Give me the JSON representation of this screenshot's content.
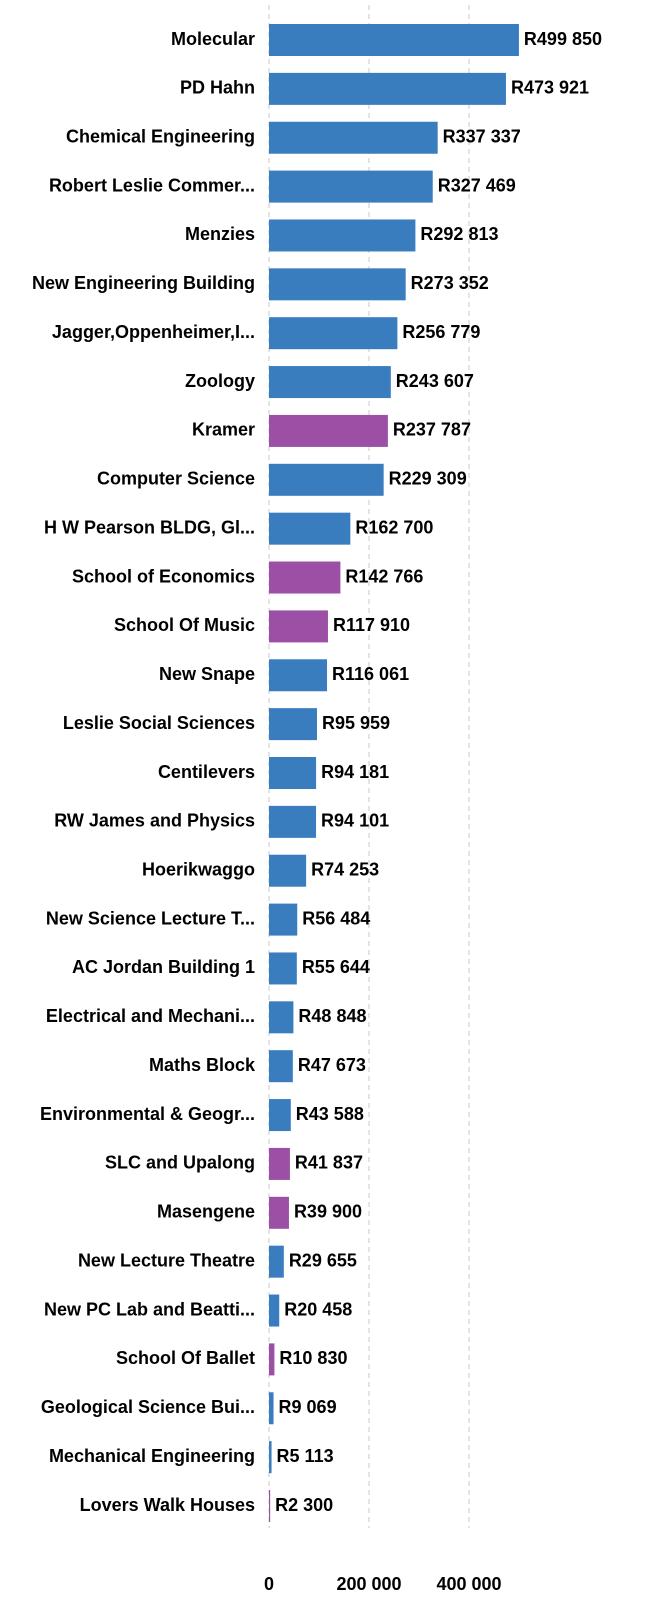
{
  "chart_data": {
    "type": "barh",
    "categories": [
      "Molecular",
      "PD Hahn",
      "Chemical Engineering",
      "Robert Leslie Commer...",
      "Menzies",
      "New Engineering Building",
      "Jagger,Oppenheimer,I...",
      "Zoology",
      "Kramer",
      "Computer Science",
      "H W Pearson BLDG, Gl...",
      "School of Economics",
      "School Of Music",
      "New Snape",
      "Leslie Social Sciences",
      "Centilevers",
      "RW James and Physics",
      "Hoerikwaggo",
      "New Science Lecture T...",
      "AC Jordan Building 1",
      "Electrical and Mechani...",
      "Maths Block",
      "Environmental & Geogr...",
      "SLC and Upalong",
      "Masengene",
      "New Lecture Theatre",
      "New PC Lab and Beatti...",
      "School Of Ballet",
      "Geological Science Bui...",
      "Mechanical Engineering",
      "Lovers Walk Houses"
    ],
    "values": [
      499850,
      473921,
      337337,
      327469,
      292813,
      273352,
      256779,
      243607,
      237787,
      229309,
      162700,
      142766,
      117910,
      116061,
      95959,
      94181,
      94101,
      74253,
      56484,
      55644,
      48848,
      47673,
      43588,
      41837,
      39900,
      29655,
      20458,
      10830,
      9069,
      5113,
      2300
    ],
    "value_labels": [
      "R499 850",
      "R473 921",
      "R337 337",
      "R327 469",
      "R292 813",
      "R273 352",
      "R256 779",
      "R243 607",
      "R237 787",
      "R229 309",
      "R162 700",
      "R142 766",
      "R117 910",
      "R116 061",
      "R95 959",
      "R94 181",
      "R94 101",
      "R74 253",
      "R56 484",
      "R55 644",
      "R48 848",
      "R47 673",
      "R43 588",
      "R41 837",
      "R39 900",
      "R29 655",
      "R20 458",
      "R10 830",
      "R9 069",
      "R5 113",
      "R2 300"
    ],
    "colors": [
      "#3a7dbf",
      "#3a7dbf",
      "#3a7dbf",
      "#3a7dbf",
      "#3a7dbf",
      "#3a7dbf",
      "#3a7dbf",
      "#3a7dbf",
      "#9b4fa5",
      "#3a7dbf",
      "#3a7dbf",
      "#9b4fa5",
      "#9b4fa5",
      "#3a7dbf",
      "#3a7dbf",
      "#3a7dbf",
      "#3a7dbf",
      "#3a7dbf",
      "#3a7dbf",
      "#3a7dbf",
      "#3a7dbf",
      "#3a7dbf",
      "#3a7dbf",
      "#9b4fa5",
      "#9b4fa5",
      "#3a7dbf",
      "#3a7dbf",
      "#9b4fa5",
      "#3a7dbf",
      "#3a7dbf",
      "#9b4fa5"
    ],
    "xlim": [
      0,
      750000
    ],
    "xticks": [
      0,
      {
        "value": 200000,
        "label": "200 000"
      },
      {
        "value": 400000,
        "label": "400 000"
      }
    ],
    "grid": true
  }
}
